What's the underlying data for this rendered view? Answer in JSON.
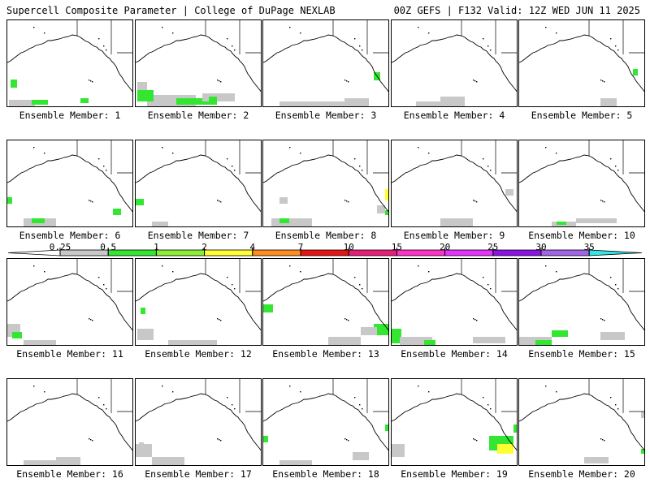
{
  "header": {
    "left": "Supercell Composite Parameter | College of DuPage NEXLAB",
    "right": "00Z GEFS | F132 Valid: 12Z WED JUN 11 2025"
  },
  "panel_label_prefix": "Ensemble Member:",
  "members": [
    1,
    2,
    3,
    4,
    5,
    6,
    7,
    8,
    9,
    10,
    11,
    12,
    13,
    14,
    15,
    16,
    17,
    18,
    19,
    20
  ],
  "colorbar": {
    "labels": [
      "0.25",
      "0.5",
      "1",
      "2",
      "4",
      "7",
      "10",
      "15",
      "20",
      "25",
      "30",
      "35"
    ],
    "colors": [
      "#c8c8c8",
      "#32e632",
      "#8cee32",
      "#ffff32",
      "#ff8c1e",
      "#e61414",
      "#e61e78",
      "#ff32c8",
      "#e632ff",
      "#8c14e6",
      "#a064e6",
      "#32e6e6"
    ]
  }
}
